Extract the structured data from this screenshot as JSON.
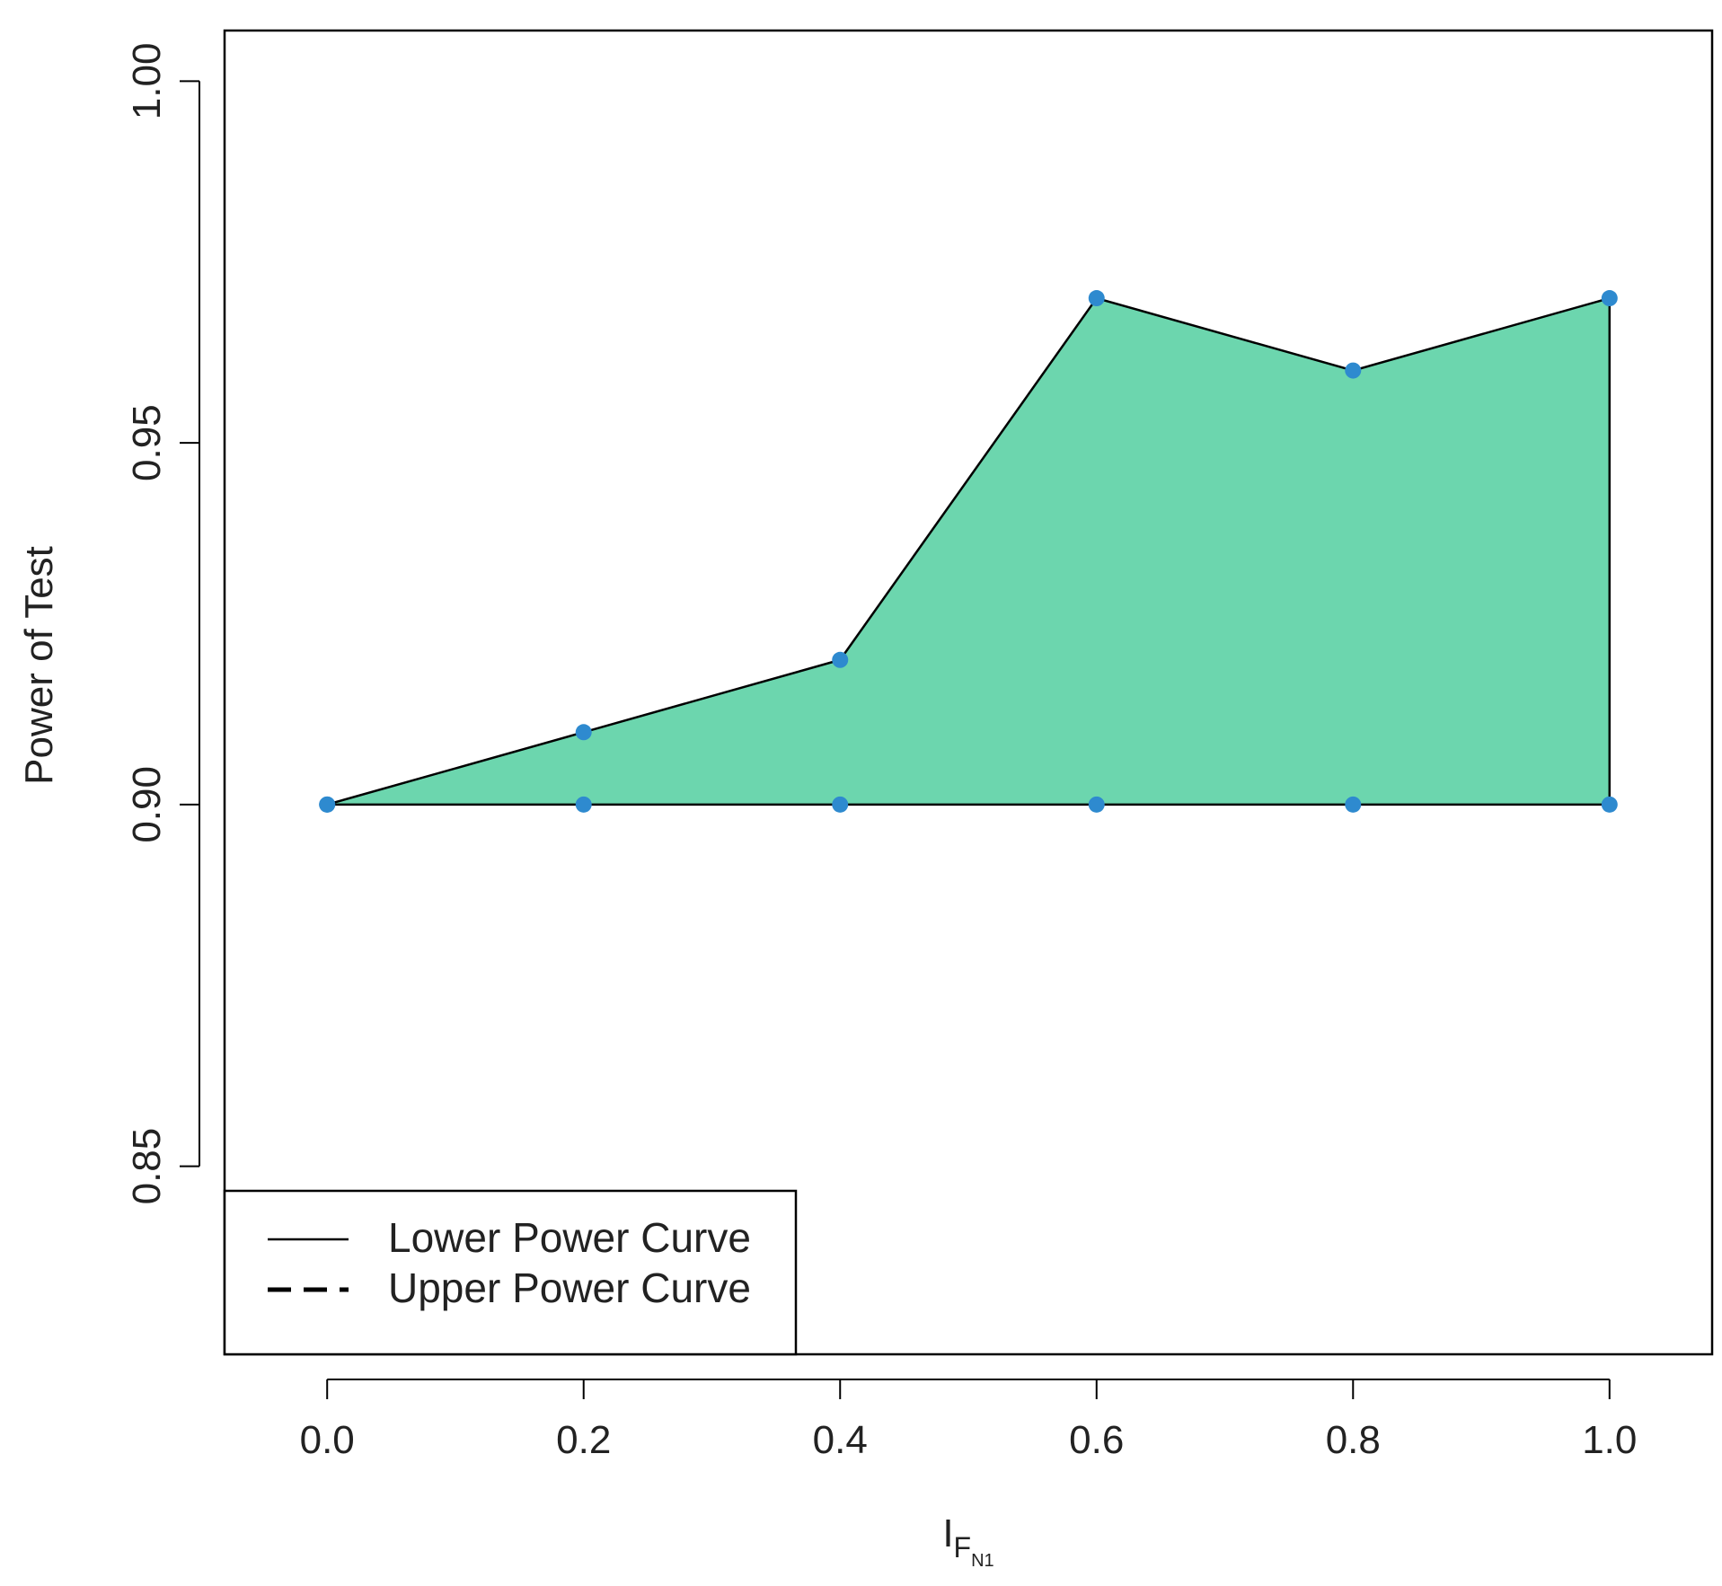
{
  "chart_data": {
    "type": "area",
    "title": "",
    "xlabel": {
      "main": "I",
      "sub": "F",
      "subsub": "N1"
    },
    "ylabel": "Power of Test",
    "xlim": [
      -0.08,
      1.08
    ],
    "ylim": [
      0.824,
      1.007
    ],
    "x_ticks": [
      {
        "value": 0.0,
        "label": "0.0"
      },
      {
        "value": 0.2,
        "label": "0.2"
      },
      {
        "value": 0.4,
        "label": "0.4"
      },
      {
        "value": 0.6,
        "label": "0.6"
      },
      {
        "value": 0.8,
        "label": "0.8"
      },
      {
        "value": 1.0,
        "label": "1.0"
      }
    ],
    "y_ticks": [
      {
        "value": 0.85,
        "label": "0.85"
      },
      {
        "value": 0.9,
        "label": "0.90"
      },
      {
        "value": 0.95,
        "label": "0.95"
      },
      {
        "value": 1.0,
        "label": "1.00"
      }
    ],
    "x": [
      0.0,
      0.2,
      0.4,
      0.6,
      0.8,
      1.0
    ],
    "series": [
      {
        "name": "Lower Power Curve",
        "values": [
          0.9,
          0.91,
          0.92,
          0.97,
          0.96,
          0.97
        ],
        "line_style": "solid"
      },
      {
        "name": "Upper Power Curve",
        "values": [
          0.9,
          0.9,
          0.9,
          0.9,
          0.9,
          0.9
        ],
        "line_style": "dashed"
      }
    ],
    "legend_position": "bottom-left",
    "grid": false,
    "colors": {
      "fill": "#6CD6AE",
      "points": "#2E8ACF",
      "line": "#000000"
    }
  }
}
